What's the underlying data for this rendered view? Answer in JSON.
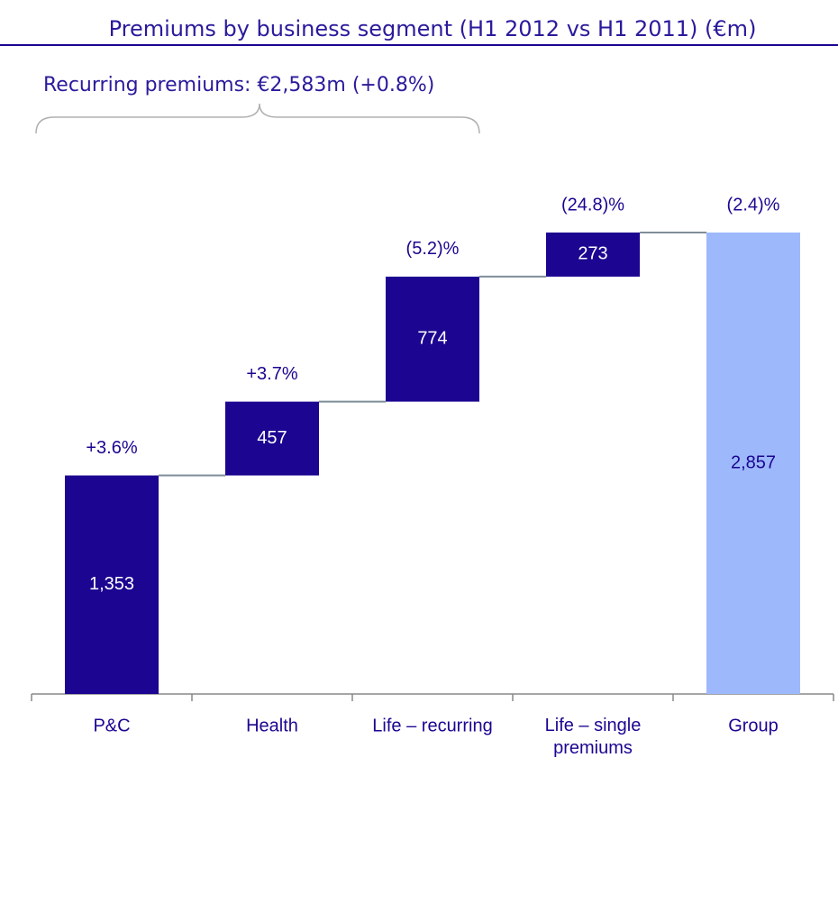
{
  "chart_data": {
    "type": "waterfall",
    "title": "Premiums by business segment (H1 2012 vs H1 2011) (€m)",
    "annotation": "Recurring premiums: €2,583m (+0.8%)",
    "categories": [
      "P&C",
      "Health",
      "Life – recurring",
      "Life – single premiums",
      "Group"
    ],
    "measure": [
      "relative",
      "relative",
      "relative",
      "relative",
      "total"
    ],
    "values": [
      1353,
      457,
      774,
      273,
      2857
    ],
    "value_labels": [
      "1,353",
      "457",
      "774",
      "273",
      "2,857"
    ],
    "changes": [
      "+3.6%",
      "+3.7%",
      "(5.2)%",
      "(24.8)%",
      "(2.4)%"
    ],
    "color": "#1c0591",
    "total_color": "#9db9fc",
    "connector_color": "#7f8f99"
  }
}
